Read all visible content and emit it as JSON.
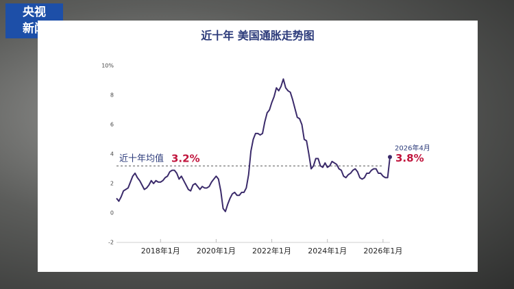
{
  "logo": [
    "央视",
    "新闻"
  ],
  "chart_data": {
    "type": "line",
    "title": "近十年 美国通胀走势图",
    "color": "#3a2a6a",
    "x": [
      "2016-06",
      "2016-07",
      "2016-08",
      "2016-09",
      "2016-10",
      "2016-11",
      "2016-12",
      "2017-01",
      "2017-02",
      "2017-03",
      "2017-04",
      "2017-05",
      "2017-06",
      "2017-07",
      "2017-08",
      "2017-09",
      "2017-10",
      "2017-11",
      "2017-12",
      "2018-01",
      "2018-02",
      "2018-03",
      "2018-04",
      "2018-05",
      "2018-06",
      "2018-07",
      "2018-08",
      "2018-09",
      "2018-10",
      "2018-11",
      "2018-12",
      "2019-01",
      "2019-02",
      "2019-03",
      "2019-04",
      "2019-05",
      "2019-06",
      "2019-07",
      "2019-08",
      "2019-09",
      "2019-10",
      "2019-11",
      "2019-12",
      "2020-01",
      "2020-02",
      "2020-03",
      "2020-04",
      "2020-05",
      "2020-06",
      "2020-07",
      "2020-08",
      "2020-09",
      "2020-10",
      "2020-11",
      "2020-12",
      "2021-01",
      "2021-02",
      "2021-03",
      "2021-04",
      "2021-05",
      "2021-06",
      "2021-07",
      "2021-08",
      "2021-09",
      "2021-10",
      "2021-11",
      "2021-12",
      "2022-01",
      "2022-02",
      "2022-03",
      "2022-04",
      "2022-05",
      "2022-06",
      "2022-07",
      "2022-08",
      "2022-09",
      "2022-10",
      "2022-11",
      "2022-12",
      "2023-01",
      "2023-02",
      "2023-03",
      "2023-04",
      "2023-05",
      "2023-06",
      "2023-07",
      "2023-08",
      "2023-09",
      "2023-10",
      "2023-11",
      "2023-12",
      "2024-01",
      "2024-02",
      "2024-03",
      "2024-04",
      "2024-05",
      "2024-06",
      "2024-07",
      "2024-08",
      "2024-09",
      "2024-10",
      "2024-11",
      "2024-12",
      "2025-01",
      "2025-02",
      "2025-03",
      "2025-04",
      "2025-05",
      "2025-06",
      "2025-07",
      "2025-08",
      "2025-09",
      "2025-10",
      "2025-11",
      "2025-12",
      "2026-01",
      "2026-02",
      "2026-03",
      "2026-04"
    ],
    "values": [
      1.0,
      0.8,
      1.1,
      1.5,
      1.6,
      1.7,
      2.1,
      2.5,
      2.7,
      2.4,
      2.2,
      1.9,
      1.6,
      1.7,
      1.9,
      2.2,
      2.0,
      2.2,
      2.1,
      2.1,
      2.2,
      2.4,
      2.5,
      2.8,
      2.9,
      2.9,
      2.7,
      2.3,
      2.5,
      2.2,
      1.9,
      1.6,
      1.5,
      1.9,
      2.0,
      1.8,
      1.6,
      1.8,
      1.7,
      1.7,
      1.8,
      2.1,
      2.3,
      2.5,
      2.3,
      1.5,
      0.3,
      0.1,
      0.6,
      1.0,
      1.3,
      1.4,
      1.2,
      1.2,
      1.4,
      1.4,
      1.7,
      2.6,
      4.2,
      5.0,
      5.4,
      5.4,
      5.3,
      5.4,
      6.2,
      6.8,
      7.0,
      7.5,
      7.9,
      8.5,
      8.3,
      8.6,
      9.1,
      8.5,
      8.3,
      8.2,
      7.7,
      7.1,
      6.5,
      6.4,
      6.0,
      5.0,
      4.9,
      4.0,
      3.0,
      3.2,
      3.7,
      3.7,
      3.2,
      3.1,
      3.4,
      3.1,
      3.2,
      3.5,
      3.4,
      3.3,
      3.0,
      2.9,
      2.5,
      2.4,
      2.6,
      2.7,
      2.9,
      3.0,
      2.8,
      2.4,
      2.3,
      2.4,
      2.7,
      2.7,
      2.9,
      3.0,
      3.0,
      2.7,
      2.7,
      2.5,
      2.4,
      2.4,
      3.8
    ],
    "xlim": [
      "2016-06",
      "2026-04"
    ],
    "xticks": [
      {
        "value": "2018-01",
        "label": "2018年1月"
      },
      {
        "value": "2020-01",
        "label": "2020年1月"
      },
      {
        "value": "2022-01",
        "label": "2022年1月"
      },
      {
        "value": "2024-01",
        "label": "2024年1月"
      },
      {
        "value": "2026-01",
        "label": "2026年1月"
      }
    ],
    "ylim": [
      -2,
      10
    ],
    "yticks": [
      -2,
      0,
      2,
      4,
      6,
      8,
      {
        "value": 10,
        "label": "10%"
      }
    ],
    "average": {
      "label": "近十年均值",
      "value": 3.2,
      "value_label": "3.2%"
    },
    "end_annotation": {
      "date": "2026年4月",
      "label": "3.8%"
    }
  }
}
